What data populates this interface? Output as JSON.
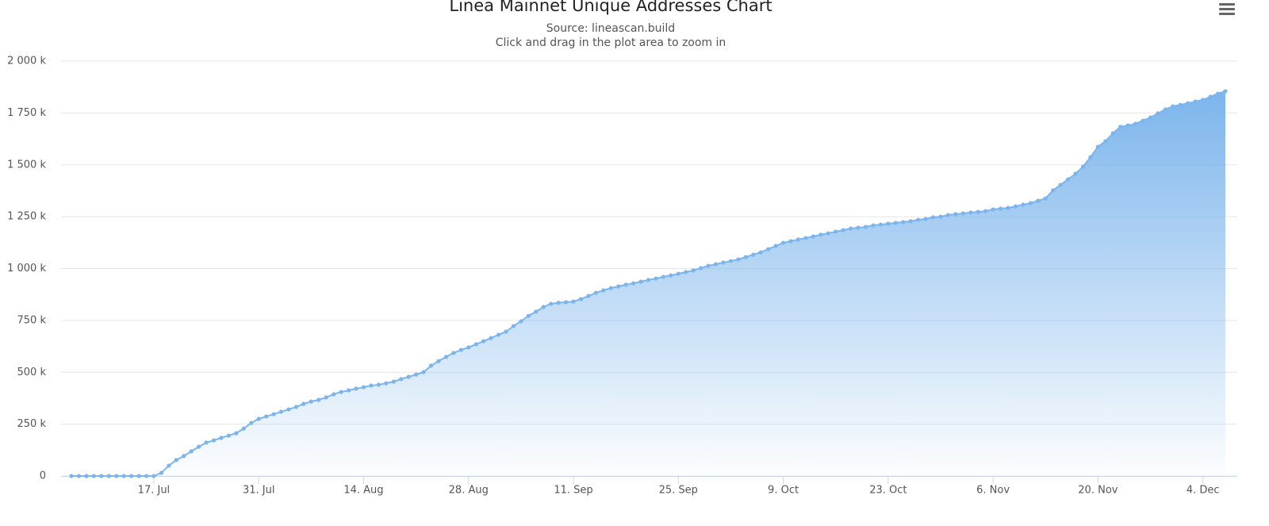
{
  "chart_data": {
    "type": "area",
    "title": "Linea Mainnet Unique Addresses Chart",
    "subtitle": "Source: lineascan.build",
    "hint": "Click and drag in the plot area to zoom in",
    "x": [
      "6. Jul",
      "7. Jul",
      "8. Jul",
      "9. Jul",
      "10. Jul",
      "11. Jul",
      "12. Jul",
      "13. Jul",
      "14. Jul",
      "15. Jul",
      "16. Jul",
      "17. Jul",
      "18. Jul",
      "19. Jul",
      "20. Jul",
      "21. Jul",
      "22. Jul",
      "23. Jul",
      "24. Jul",
      "25. Jul",
      "26. Jul",
      "27. Jul",
      "28. Jul",
      "29. Jul",
      "30. Jul",
      "31. Jul",
      "1. Aug",
      "2. Aug",
      "3. Aug",
      "4. Aug",
      "5. Aug",
      "6. Aug",
      "7. Aug",
      "8. Aug",
      "9. Aug",
      "10. Aug",
      "11. Aug",
      "12. Aug",
      "13. Aug",
      "14. Aug",
      "15. Aug",
      "16. Aug",
      "17. Aug",
      "18. Aug",
      "19. Aug",
      "20. Aug",
      "21. Aug",
      "22. Aug",
      "23. Aug",
      "24. Aug",
      "25. Aug",
      "26. Aug",
      "27. Aug",
      "28. Aug",
      "29. Aug",
      "30. Aug",
      "31. Aug",
      "1. Sep",
      "2. Sep",
      "3. Sep",
      "4. Sep",
      "5. Sep",
      "6. Sep",
      "7. Sep",
      "8. Sep",
      "9. Sep",
      "10. Sep",
      "11. Sep",
      "12. Sep",
      "13. Sep",
      "14. Sep",
      "15. Sep",
      "16. Sep",
      "17. Sep",
      "18. Sep",
      "19. Sep",
      "20. Sep",
      "21. Sep",
      "22. Sep",
      "23. Sep",
      "24. Sep",
      "25. Sep",
      "26. Sep",
      "27. Sep",
      "28. Sep",
      "29. Sep",
      "30. Sep",
      "1. Oct",
      "2. Oct",
      "3. Oct",
      "4. Oct",
      "5. Oct",
      "6. Oct",
      "7. Oct",
      "8. Oct",
      "9. Oct",
      "10. Oct",
      "11. Oct",
      "12. Oct",
      "13. Oct",
      "14. Oct",
      "15. Oct",
      "16. Oct",
      "17. Oct",
      "18. Oct",
      "19. Oct",
      "20. Oct",
      "21. Oct",
      "22. Oct",
      "23. Oct",
      "24. Oct",
      "25. Oct",
      "26. Oct",
      "27. Oct",
      "28. Oct",
      "29. Oct",
      "30. Oct",
      "31. Oct",
      "1. Nov",
      "2. Nov",
      "3. Nov",
      "4. Nov",
      "5. Nov",
      "6. Nov",
      "7. Nov",
      "8. Nov",
      "9. Nov",
      "10. Nov",
      "11. Nov",
      "12. Nov",
      "13. Nov",
      "14. Nov",
      "15. Nov",
      "16. Nov",
      "17. Nov",
      "18. Nov",
      "19. Nov",
      "20. Nov",
      "21. Nov",
      "22. Nov",
      "23. Nov",
      "24. Nov",
      "25. Nov",
      "26. Nov",
      "27. Nov",
      "28. Nov",
      "29. Nov",
      "30. Nov",
      "1. Dec",
      "2. Dec",
      "3. Dec",
      "4. Dec",
      "5. Dec",
      "6. Dec",
      "7. Dec"
    ],
    "series": [
      {
        "color": "#7cb5ec",
        "values": [
          0,
          0,
          0,
          0,
          0,
          0,
          0,
          0,
          0,
          0,
          0,
          0,
          15000,
          50000,
          77000,
          96000,
          119000,
          141000,
          161000,
          172000,
          184000,
          195000,
          206000,
          229000,
          256000,
          275000,
          287000,
          298000,
          310000,
          321000,
          333000,
          348000,
          359000,
          367000,
          379000,
          394000,
          405000,
          413000,
          421000,
          428000,
          436000,
          440000,
          447000,
          455000,
          467000,
          478000,
          489000,
          501000,
          532000,
          554000,
          574000,
          593000,
          608000,
          620000,
          635000,
          650000,
          665000,
          681000,
          696000,
          723000,
          746000,
          772000,
          792000,
          815000,
          830000,
          835000,
          838000,
          841000,
          853000,
          868000,
          883000,
          895000,
          906000,
          914000,
          922000,
          929000,
          937000,
          945000,
          952000,
          960000,
          967000,
          975000,
          983000,
          991000,
          1002000,
          1013000,
          1021000,
          1029000,
          1036000,
          1044000,
          1055000,
          1067000,
          1078000,
          1094000,
          1109000,
          1124000,
          1132000,
          1140000,
          1147000,
          1155000,
          1163000,
          1170000,
          1178000,
          1185000,
          1193000,
          1197000,
          1201000,
          1208000,
          1212000,
          1216000,
          1220000,
          1224000,
          1228000,
          1235000,
          1239000,
          1247000,
          1250000,
          1258000,
          1262000,
          1266000,
          1270000,
          1273000,
          1277000,
          1285000,
          1289000,
          1292000,
          1300000,
          1308000,
          1315000,
          1327000,
          1338000,
          1377000,
          1403000,
          1430000,
          1457000,
          1491000,
          1537000,
          1587000,
          1614000,
          1652000,
          1683000,
          1690000,
          1698000,
          1713000,
          1728000,
          1748000,
          1767000,
          1782000,
          1789000,
          1797000,
          1805000,
          1813000,
          1828000,
          1843000,
          1855000
        ]
      }
    ],
    "xticks": [
      "17. Jul",
      "31. Jul",
      "14. Aug",
      "28. Aug",
      "11. Sep",
      "25. Sep",
      "9. Oct",
      "23. Oct",
      "6. Nov",
      "20. Nov",
      "4. Dec"
    ],
    "ylim": [
      0,
      2000000
    ],
    "yticks": [
      0,
      {
        "value": 250000,
        "label": "250 k"
      },
      {
        "value": 500000,
        "label": "500 k"
      },
      {
        "value": 750000,
        "label": "750 k"
      },
      {
        "value": 1000000,
        "label": "1 000 k"
      },
      {
        "value": 1250000,
        "label": "1 250 k"
      },
      {
        "value": 1500000,
        "label": "1 500 k"
      },
      {
        "value": 1750000,
        "label": "1 750 k"
      },
      {
        "value": 2000000,
        "label": "2 000 k"
      }
    ],
    "grid": true
  }
}
